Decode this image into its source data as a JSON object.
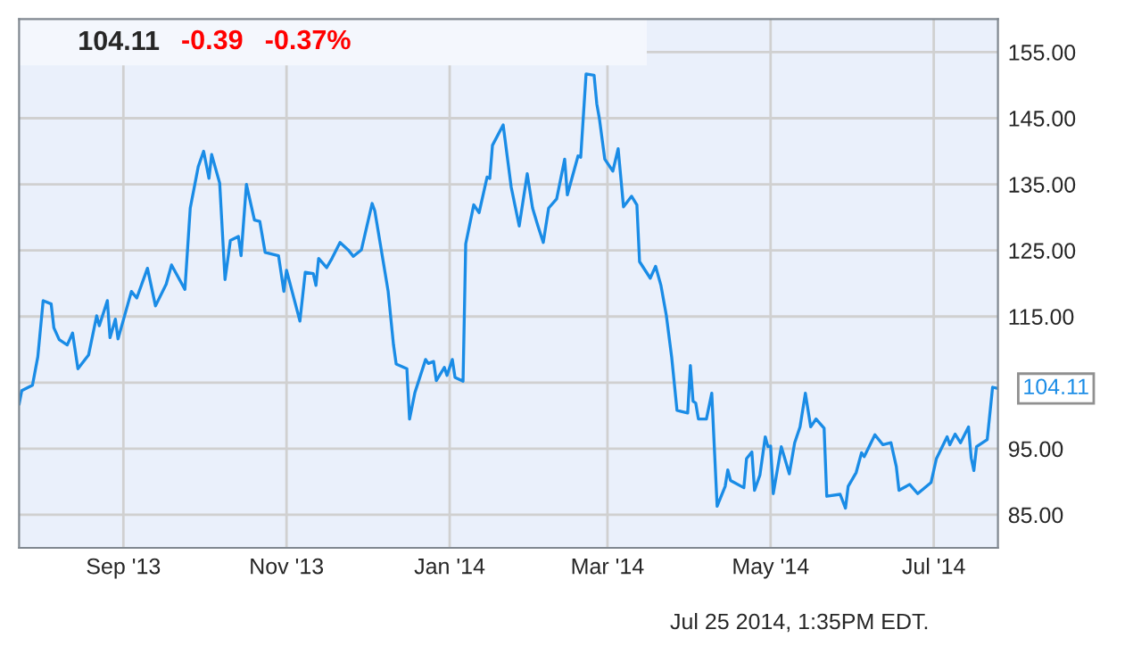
{
  "chart_data": {
    "type": "line",
    "title": "104.11",
    "annotations": [
      "-0.39",
      "-0.37%",
      "Jul 25 2014, 1:35PM EDT.",
      {
        "text": "104.11",
        "x": "2014-07-25",
        "y": 104.11
      }
    ],
    "x": [
      "2013-07-24",
      "2013-07-25",
      "2013-07-29",
      "2013-07-31",
      "2013-08-02",
      "2013-08-05",
      "2013-08-06",
      "2013-08-08",
      "2013-08-11",
      "2013-08-13",
      "2013-08-15",
      "2013-08-19",
      "2013-08-22",
      "2013-08-23",
      "2013-08-26",
      "2013-08-27",
      "2013-08-29",
      "2013-08-30",
      "2013-09-04",
      "2013-09-06",
      "2013-09-10",
      "2013-09-13",
      "2013-09-17",
      "2013-09-19",
      "2013-09-24",
      "2013-09-26",
      "2013-09-29",
      "2013-10-01",
      "2013-10-03",
      "2013-10-04",
      "2013-10-07",
      "2013-10-09",
      "2013-10-11",
      "2013-10-14",
      "2013-10-15",
      "2013-10-17",
      "2013-10-20",
      "2013-10-22",
      "2013-10-24",
      "2013-10-29",
      "2013-10-31",
      "2013-11-01",
      "2013-11-06",
      "2013-11-08",
      "2013-11-11",
      "2013-11-12",
      "2013-11-13",
      "2013-11-16",
      "2013-11-18",
      "2013-11-21",
      "2013-11-24",
      "2013-11-26",
      "2013-11-29",
      "2013-12-03",
      "2013-12-04",
      "2013-12-09",
      "2013-12-11",
      "2013-12-12",
      "2013-12-16",
      "2013-12-17",
      "2013-12-19",
      "2013-12-23",
      "2013-12-24",
      "2013-12-26",
      "2013-12-27",
      "2013-12-30",
      "2013-12-31",
      "2014-01-02",
      "2014-01-03",
      "2014-01-06",
      "2014-01-07",
      "2014-01-10",
      "2014-01-12",
      "2014-01-15",
      "2014-01-16",
      "2014-01-17",
      "2014-01-21",
      "2014-01-24",
      "2014-01-27",
      "2014-01-30",
      "2014-02-01",
      "2014-02-03",
      "2014-02-05",
      "2014-02-07",
      "2014-02-10",
      "2014-02-13",
      "2014-02-14",
      "2014-02-18",
      "2014-02-19",
      "2014-02-21",
      "2014-02-24",
      "2014-02-25",
      "2014-02-26",
      "2014-02-28",
      "2014-03-03",
      "2014-03-05",
      "2014-03-07",
      "2014-03-10",
      "2014-03-12",
      "2014-03-13",
      "2014-03-17",
      "2014-03-19",
      "2014-03-21",
      "2014-03-23",
      "2014-03-25",
      "2014-03-27",
      "2014-03-31",
      "2014-04-01",
      "2014-04-02",
      "2014-04-03",
      "2014-04-04",
      "2014-04-07",
      "2014-04-09",
      "2014-04-11",
      "2014-04-14",
      "2014-04-15",
      "2014-04-16",
      "2014-04-21",
      "2014-04-22",
      "2014-04-24",
      "2014-04-25",
      "2014-04-27",
      "2014-04-29",
      "2014-04-30",
      "2014-05-01",
      "2014-05-02",
      "2014-05-05",
      "2014-05-08",
      "2014-05-10",
      "2014-05-12",
      "2014-05-14",
      "2014-05-16",
      "2014-05-18",
      "2014-05-21",
      "2014-05-22",
      "2014-05-27",
      "2014-05-29",
      "2014-05-30",
      "2014-06-02",
      "2014-06-04",
      "2014-06-05",
      "2014-06-09",
      "2014-06-12",
      "2014-06-15",
      "2014-06-17",
      "2014-06-18",
      "2014-06-22",
      "2014-06-25",
      "2014-06-30",
      "2014-07-02",
      "2014-07-06",
      "2014-07-07",
      "2014-07-09",
      "2014-07-11",
      "2014-07-14",
      "2014-07-15",
      "2014-07-16",
      "2014-07-17",
      "2014-07-21",
      "2014-07-23",
      "2014-07-25"
    ],
    "series": [
      {
        "color": "#1a8ce6",
        "values": [
          101.7,
          103.8,
          104.6,
          108.9,
          117.4,
          116.9,
          113.3,
          111.5,
          110.7,
          112.5,
          107.1,
          109.2,
          115.1,
          113.6,
          117.4,
          111.8,
          114.6,
          111.6,
          118.8,
          117.8,
          122.3,
          116.6,
          119.9,
          122.8,
          119.1,
          131.4,
          137.7,
          140.0,
          135.9,
          139.5,
          135.2,
          120.6,
          126.5,
          127.1,
          124.2,
          135.0,
          129.6,
          129.4,
          124.7,
          124.2,
          118.8,
          122.0,
          114.3,
          121.7,
          121.5,
          119.7,
          123.8,
          122.4,
          123.8,
          126.2,
          125.1,
          124.1,
          125.1,
          132.1,
          131.0,
          118.8,
          110.7,
          107.8,
          107.1,
          99.5,
          103.5,
          108.5,
          107.9,
          108.2,
          105.3,
          107.3,
          106.1,
          108.5,
          105.8,
          105.2,
          126.0,
          131.9,
          130.7,
          136.1,
          135.9,
          140.9,
          144.0,
          134.6,
          128.7,
          136.6,
          131.4,
          128.7,
          126.2,
          131.4,
          132.8,
          138.8,
          133.4,
          139.3,
          139.1,
          151.7,
          151.5,
          147.2,
          144.9,
          138.8,
          137.0,
          140.4,
          131.6,
          133.2,
          131.9,
          123.3,
          120.8,
          122.6,
          119.7,
          115.2,
          108.9,
          100.8,
          100.4,
          107.6,
          102.2,
          101.9,
          99.5,
          99.5,
          103.4,
          86.3,
          89.3,
          91.8,
          90.2,
          89.1,
          93.5,
          94.5,
          88.7,
          91.0,
          96.8,
          95.3,
          95.4,
          88.2,
          95.3,
          91.2,
          95.9,
          98.3,
          103.4,
          98.3,
          99.5,
          98.1,
          87.8,
          88.1,
          86.0,
          89.3,
          91.4,
          94.4,
          93.8,
          97.1,
          95.6,
          95.9,
          92.3,
          88.7,
          89.6,
          88.2,
          89.9,
          93.5,
          96.8,
          95.6,
          97.2,
          95.9,
          98.3,
          93.6,
          91.7,
          95.3,
          96.4,
          104.3,
          104.11
        ]
      }
    ],
    "xlim": [
      "2013-07-24",
      "2014-07-25"
    ],
    "xticks": [
      {
        "value": "2013-09-01",
        "label": "Sep '13"
      },
      {
        "value": "2013-11-01",
        "label": "Nov '13"
      },
      {
        "value": "2014-01-01",
        "label": "Jan '14"
      },
      {
        "value": "2014-03-01",
        "label": "Mar '14"
      },
      {
        "value": "2014-05-01",
        "label": "May '14"
      },
      {
        "value": "2014-07-01",
        "label": "Jul '14"
      }
    ],
    "ylim": [
      80,
      160
    ],
    "yticks": [
      {
        "value": 85,
        "label": "85.00"
      },
      {
        "value": 95,
        "label": "95.00"
      },
      {
        "value": 105,
        "label": null
      },
      {
        "value": 115,
        "label": "115.00"
      },
      {
        "value": 125,
        "label": "125.00"
      },
      {
        "value": 135,
        "label": "135.00"
      },
      {
        "value": 145,
        "label": "145.00"
      },
      {
        "value": 155,
        "label": "155.00"
      }
    ],
    "grid": true,
    "legend": false,
    "line_style": "solid",
    "marker": "none"
  }
}
